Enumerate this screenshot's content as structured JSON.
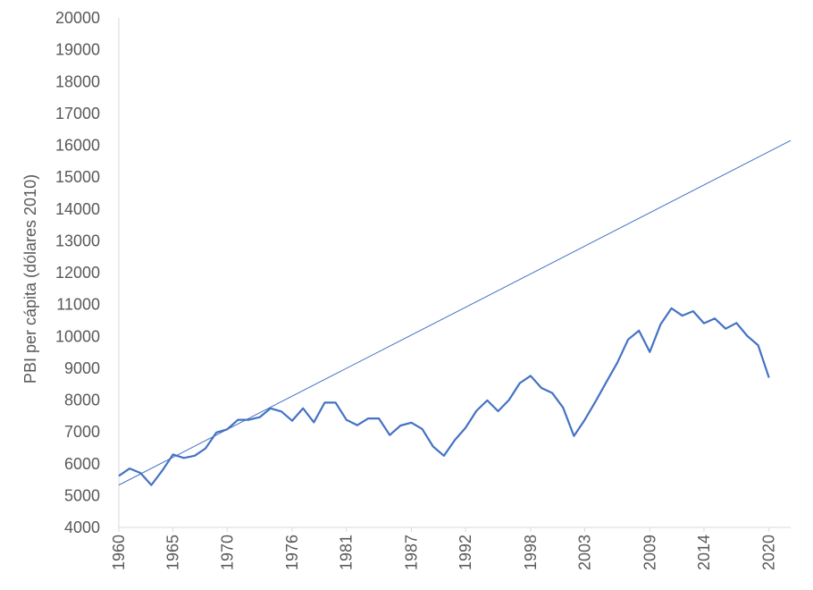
{
  "chart_data": {
    "type": "line",
    "title": "",
    "xlabel": "",
    "ylabel": "PBI per cápita (dólares 2010)",
    "ylim": [
      4000,
      20000
    ],
    "xlim": [
      1960,
      2022
    ],
    "y_ticks": [
      4000,
      5000,
      6000,
      7000,
      8000,
      9000,
      10000,
      11000,
      12000,
      13000,
      14000,
      15000,
      16000,
      17000,
      18000,
      19000,
      20000
    ],
    "x_ticks": [
      1960,
      1965,
      1970,
      1976,
      1981,
      1987,
      1992,
      1998,
      2003,
      2009,
      2014,
      2020
    ],
    "grid": false,
    "legend": "none",
    "series": [
      {
        "color": "#4472c4",
        "x": [
          1960,
          1961,
          1962,
          1963,
          1964,
          1965,
          1966,
          1967,
          1968,
          1969,
          1970,
          1971,
          1972,
          1973,
          1974,
          1975,
          1976,
          1977,
          1978,
          1979,
          1980,
          1981,
          1982,
          1983,
          1984,
          1985,
          1986,
          1987,
          1988,
          1989,
          1990,
          1991,
          1992,
          1993,
          1994,
          1995,
          1996,
          1997,
          1998,
          1999,
          2000,
          2001,
          2002,
          2003,
          2004,
          2005,
          2006,
          2007,
          2008,
          2009,
          2010,
          2011,
          2012,
          2013,
          2014,
          2015,
          2016,
          2017,
          2018,
          2019,
          2020
        ],
        "values": [
          5620,
          5850,
          5710,
          5330,
          5780,
          6290,
          6180,
          6250,
          6480,
          6980,
          7080,
          7380,
          7380,
          7460,
          7740,
          7640,
          7350,
          7740,
          7300,
          7920,
          7920,
          7380,
          7210,
          7420,
          7420,
          6900,
          7200,
          7290,
          7090,
          6540,
          6250,
          6740,
          7130,
          7660,
          7990,
          7650,
          8000,
          8530,
          8760,
          8380,
          8220,
          7760,
          6870,
          7380,
          7960,
          8570,
          9170,
          9900,
          10180,
          9510,
          10380,
          10880,
          10650,
          10790,
          10410,
          10560,
          10240,
          10420,
          10010,
          9720,
          8700
        ]
      },
      {
        "color": "#4472c4",
        "x": [
          1960,
          2022
        ],
        "values": [
          5330,
          16150
        ]
      }
    ]
  }
}
